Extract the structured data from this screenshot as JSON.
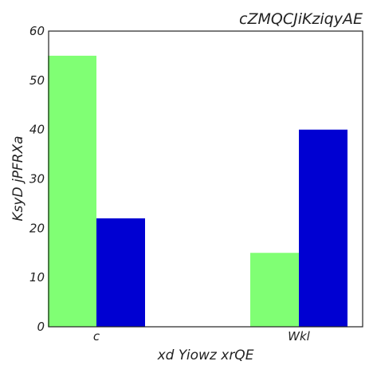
{
  "chart_data": {
    "type": "bar",
    "title": "cZMQCJiKziqyAE",
    "xlabel": "xd Yiowz xrQE",
    "ylabel": "KsyD jPFRXa",
    "categories": [
      "c",
      "Wkl"
    ],
    "series": [
      {
        "values": [
          55,
          15
        ],
        "color": "#80ff74"
      },
      {
        "values": [
          22,
          40
        ],
        "color": "#0000d2"
      }
    ],
    "ylim": [
      0,
      60
    ],
    "yticks": [
      0,
      10,
      20,
      30,
      40,
      50,
      60
    ],
    "grid": false,
    "legend": "none"
  }
}
